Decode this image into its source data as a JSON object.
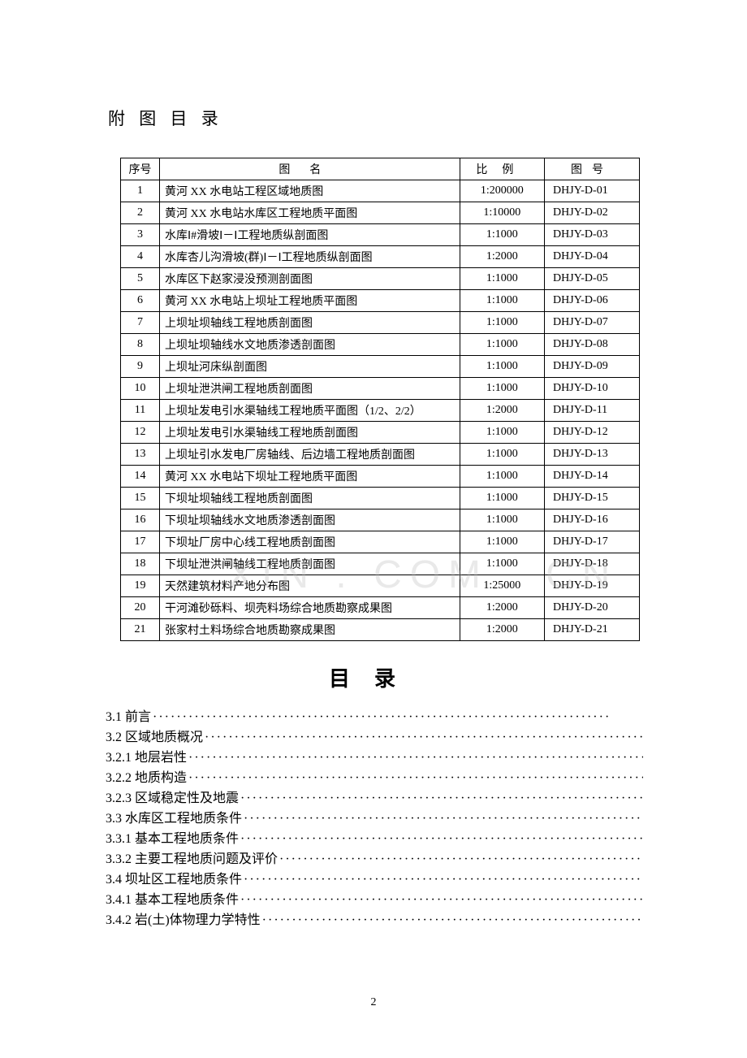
{
  "section_title": "附 图 目 录",
  "watermark": "XIN . COM . CN",
  "page_number": "2",
  "table": {
    "headers": {
      "seq": "序号",
      "name": "图名",
      "scale": "比例",
      "code": "图号"
    },
    "rows": [
      {
        "seq": "1",
        "name": "黄河 XX 水电站工程区域地质图",
        "scale": "1:200000",
        "code": "DHJY-D-01"
      },
      {
        "seq": "2",
        "name": "黄河 XX 水电站水库区工程地质平面图",
        "scale": "1:10000",
        "code": "DHJY-D-02"
      },
      {
        "seq": "3",
        "name": "水库Ⅰ#滑坡Ⅰ－Ⅰ工程地质纵剖面图",
        "scale": "1:1000",
        "code": "DHJY-D-03"
      },
      {
        "seq": "4",
        "name": "水库杏儿沟滑坡(群)Ⅰ－Ⅰ工程地质纵剖面图",
        "scale": "1:2000",
        "code": "DHJY-D-04"
      },
      {
        "seq": "5",
        "name": "水库区下赵家浸没预测剖面图",
        "scale": "1:1000",
        "code": "DHJY-D-05"
      },
      {
        "seq": "6",
        "name": "黄河 XX 水电站上坝址工程地质平面图",
        "scale": "1:1000",
        "code": "DHJY-D-06"
      },
      {
        "seq": "7",
        "name": "上坝址坝轴线工程地质剖面图",
        "scale": "1:1000",
        "code": "DHJY-D-07"
      },
      {
        "seq": "8",
        "name": "上坝址坝轴线水文地质渗透剖面图",
        "scale": "1:1000",
        "code": "DHJY-D-08"
      },
      {
        "seq": "9",
        "name": "上坝址河床纵剖面图",
        "scale": "1:1000",
        "code": "DHJY-D-09"
      },
      {
        "seq": "10",
        "name": "上坝址泄洪闸工程地质剖面图",
        "scale": "1:1000",
        "code": "DHJY-D-10"
      },
      {
        "seq": "11",
        "name": "上坝址发电引水渠轴线工程地质平面图（1/2、2/2）",
        "scale": "1:2000",
        "code": "DHJY-D-11"
      },
      {
        "seq": "12",
        "name": "上坝址发电引水渠轴线工程地质剖面图",
        "scale": "1:1000",
        "code": "DHJY-D-12"
      },
      {
        "seq": "13",
        "name": "上坝址引水发电厂房轴线、后边墙工程地质剖面图",
        "scale": "1:1000",
        "code": "DHJY-D-13"
      },
      {
        "seq": "14",
        "name": "黄河 XX 水电站下坝址工程地质平面图",
        "scale": "1:1000",
        "code": "DHJY-D-14"
      },
      {
        "seq": "15",
        "name": "下坝址坝轴线工程地质剖面图",
        "scale": "1:1000",
        "code": "DHJY-D-15"
      },
      {
        "seq": "16",
        "name": "下坝址坝轴线水文地质渗透剖面图",
        "scale": "1:1000",
        "code": "DHJY-D-16"
      },
      {
        "seq": "17",
        "name": "下坝址厂房中心线工程地质剖面图",
        "scale": "1:1000",
        "code": "DHJY-D-17"
      },
      {
        "seq": "18",
        "name": "下坝址泄洪闸轴线工程地质剖面图",
        "scale": "1:1000",
        "code": "DHJY-D-18"
      },
      {
        "seq": "19",
        "name": "天然建筑材料产地分布图",
        "scale": "1:25000",
        "code": "DHJY-D-19"
      },
      {
        "seq": "20",
        "name": "干河滩砂砾料、坝壳料场综合地质勘察成果图",
        "scale": "1:2000",
        "code": "DHJY-D-20"
      },
      {
        "seq": "21",
        "name": "张家村土料场综合地质勘察成果图",
        "scale": "1:2000",
        "code": "DHJY-D-21"
      }
    ]
  },
  "toc": {
    "heading": "目录",
    "items": [
      {
        "num": "3.1",
        "text": "前言",
        "indent": 0
      },
      {
        "num": "3.2",
        "text": "区域地质概况",
        "indent": 0
      },
      {
        "num": "3.2.1",
        "text": "地层岩性",
        "indent": 1
      },
      {
        "num": "3.2.2",
        "text": "地质构造",
        "indent": 1
      },
      {
        "num": "3.2.3",
        "text": "区域稳定性及地震",
        "indent": 1
      },
      {
        "num": "3.3",
        "text": "水库区工程地质条件",
        "indent": 0
      },
      {
        "num": "3.3.1",
        "text": "基本工程地质条件",
        "indent": 1
      },
      {
        "num": "3.3.2",
        "text": "主要工程地质问题及评价",
        "indent": 1
      },
      {
        "num": "3.4",
        "text": "坝址区工程地质条件",
        "indent": 0
      },
      {
        "num": "3.4.1",
        "text": "基本工程地质条件",
        "indent": 1
      },
      {
        "num": "3.4.2",
        "text": "岩(土)体物理力学特性",
        "indent": 1
      }
    ]
  }
}
